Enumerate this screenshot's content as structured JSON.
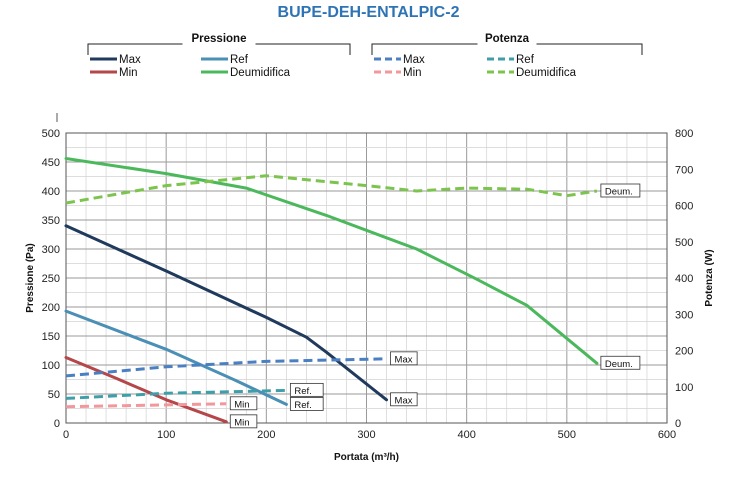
{
  "chart_data": {
    "type": "line",
    "title": "BUPE-DEH-ENTALPIC-2",
    "xlabel": "Portata (m³/h)",
    "ylabel": "Pressione (Pa)",
    "y2label": "Potenza (W)",
    "xlim": [
      0,
      600
    ],
    "ylim": [
      0,
      500
    ],
    "y2lim": [
      0,
      800
    ],
    "xticks": [
      "0",
      "100",
      "200",
      "300",
      "400",
      "500",
      "600"
    ],
    "yticks": [
      "0",
      "50",
      "100",
      "150",
      "200",
      "250",
      "300",
      "350",
      "400",
      "450",
      "500"
    ],
    "y2ticks": [
      "0",
      "100",
      "200",
      "300",
      "400",
      "500",
      "600",
      "700",
      "800"
    ],
    "grid": true,
    "legend": {
      "placement": "top",
      "groups": [
        {
          "heading": "Pressione",
          "entries": [
            "Max",
            "Ref",
            "Min",
            "Deumidifica"
          ]
        },
        {
          "heading": "Potenza",
          "entries": [
            "Max",
            "Ref",
            "Min",
            "Deumidifica"
          ]
        }
      ]
    },
    "series": [
      {
        "group": "Pressione",
        "name": "Max",
        "axis": "left",
        "color": "#1f3a5c",
        "style": "solid",
        "x": [
          0,
          100,
          200,
          240,
          260,
          320
        ],
        "y": [
          340,
          262,
          182,
          148,
          122,
          40
        ]
      },
      {
        "group": "Pressione",
        "name": "Ref",
        "axis": "left",
        "color": "#4a8fb5",
        "style": "solid",
        "x": [
          0,
          100,
          170,
          220
        ],
        "y": [
          193,
          127,
          73,
          32
        ]
      },
      {
        "group": "Pressione",
        "name": "Min",
        "axis": "left",
        "color": "#b5464a",
        "style": "solid",
        "x": [
          0,
          50,
          100,
          160
        ],
        "y": [
          113,
          77,
          40,
          2
        ]
      },
      {
        "group": "Pressione",
        "name": "Deumidifica",
        "axis": "left",
        "color": "#4cb85c",
        "style": "solid",
        "x": [
          0,
          100,
          180,
          260,
          350,
          410,
          460,
          530
        ],
        "y": [
          456,
          430,
          405,
          358,
          300,
          248,
          203,
          103
        ]
      },
      {
        "group": "Potenza",
        "name": "Max",
        "axis": "right",
        "color": "#4a7fc2",
        "style": "dashed",
        "x": [
          0,
          100,
          200,
          320
        ],
        "y": [
          130,
          155,
          170,
          177
        ]
      },
      {
        "group": "Potenza",
        "name": "Ref",
        "axis": "right",
        "color": "#3f9fa8",
        "style": "dashed",
        "x": [
          0,
          100,
          220
        ],
        "y": [
          68,
          82,
          90
        ]
      },
      {
        "group": "Potenza",
        "name": "Min",
        "axis": "right",
        "color": "#f2989c",
        "style": "dashed",
        "x": [
          0,
          100,
          160
        ],
        "y": [
          45,
          50,
          53
        ]
      },
      {
        "group": "Potenza",
        "name": "Deumidifica",
        "axis": "right",
        "color": "#7cc44e",
        "style": "dashed",
        "x": [
          0,
          100,
          200,
          300,
          350,
          400,
          460,
          500,
          530
        ],
        "y": [
          607,
          655,
          682,
          655,
          640,
          648,
          645,
          627,
          640
        ]
      }
    ],
    "end_labels": [
      {
        "text": "Max",
        "at_x": 320,
        "at_y": 40,
        "axis": "left"
      },
      {
        "text": "Min",
        "at_x": 160,
        "at_y": 2,
        "axis": "left"
      },
      {
        "text": "Ref.",
        "at_x": 220,
        "at_y": 32,
        "axis": "left"
      },
      {
        "text": "Deum.",
        "at_x": 530,
        "at_y": 103,
        "axis": "left"
      },
      {
        "text": "Max",
        "at_x": 320,
        "at_y": 177,
        "axis": "right"
      },
      {
        "text": "Ref.",
        "at_x": 220,
        "at_y": 90,
        "axis": "right"
      },
      {
        "text": "Min",
        "at_x": 160,
        "at_y": 53,
        "axis": "right"
      },
      {
        "text": "Deum.",
        "at_x": 530,
        "at_y": 640,
        "axis": "right"
      }
    ]
  }
}
